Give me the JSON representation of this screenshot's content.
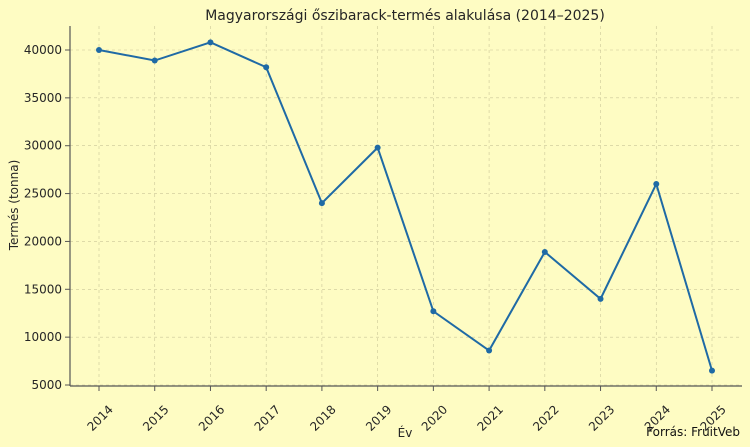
{
  "chart_data": {
    "type": "line",
    "title": "Magyarországi őszibarack-termés alakulása (2014–2025)",
    "xlabel": "Év",
    "ylabel": "Termés (tonna)",
    "source": "Forrás: FruitVeb",
    "x": [
      "2014",
      "2015",
      "2016",
      "2017",
      "2018",
      "2019",
      "2020",
      "2021",
      "2022",
      "2023",
      "2024",
      "2025"
    ],
    "series": [
      {
        "values": [
          40000,
          38900,
          40800,
          38200,
          24000,
          29800,
          12700,
          8600,
          18900,
          14000,
          26000,
          6500
        ]
      }
    ],
    "ylim": [
      5000,
      40000
    ],
    "yticks": [
      5000,
      10000,
      15000,
      20000,
      25000,
      30000,
      35000,
      40000
    ],
    "grid": true,
    "colors": {
      "line": "#1f6aa5",
      "marker": "#1f6aa5",
      "background": "#fefcc3"
    }
  }
}
